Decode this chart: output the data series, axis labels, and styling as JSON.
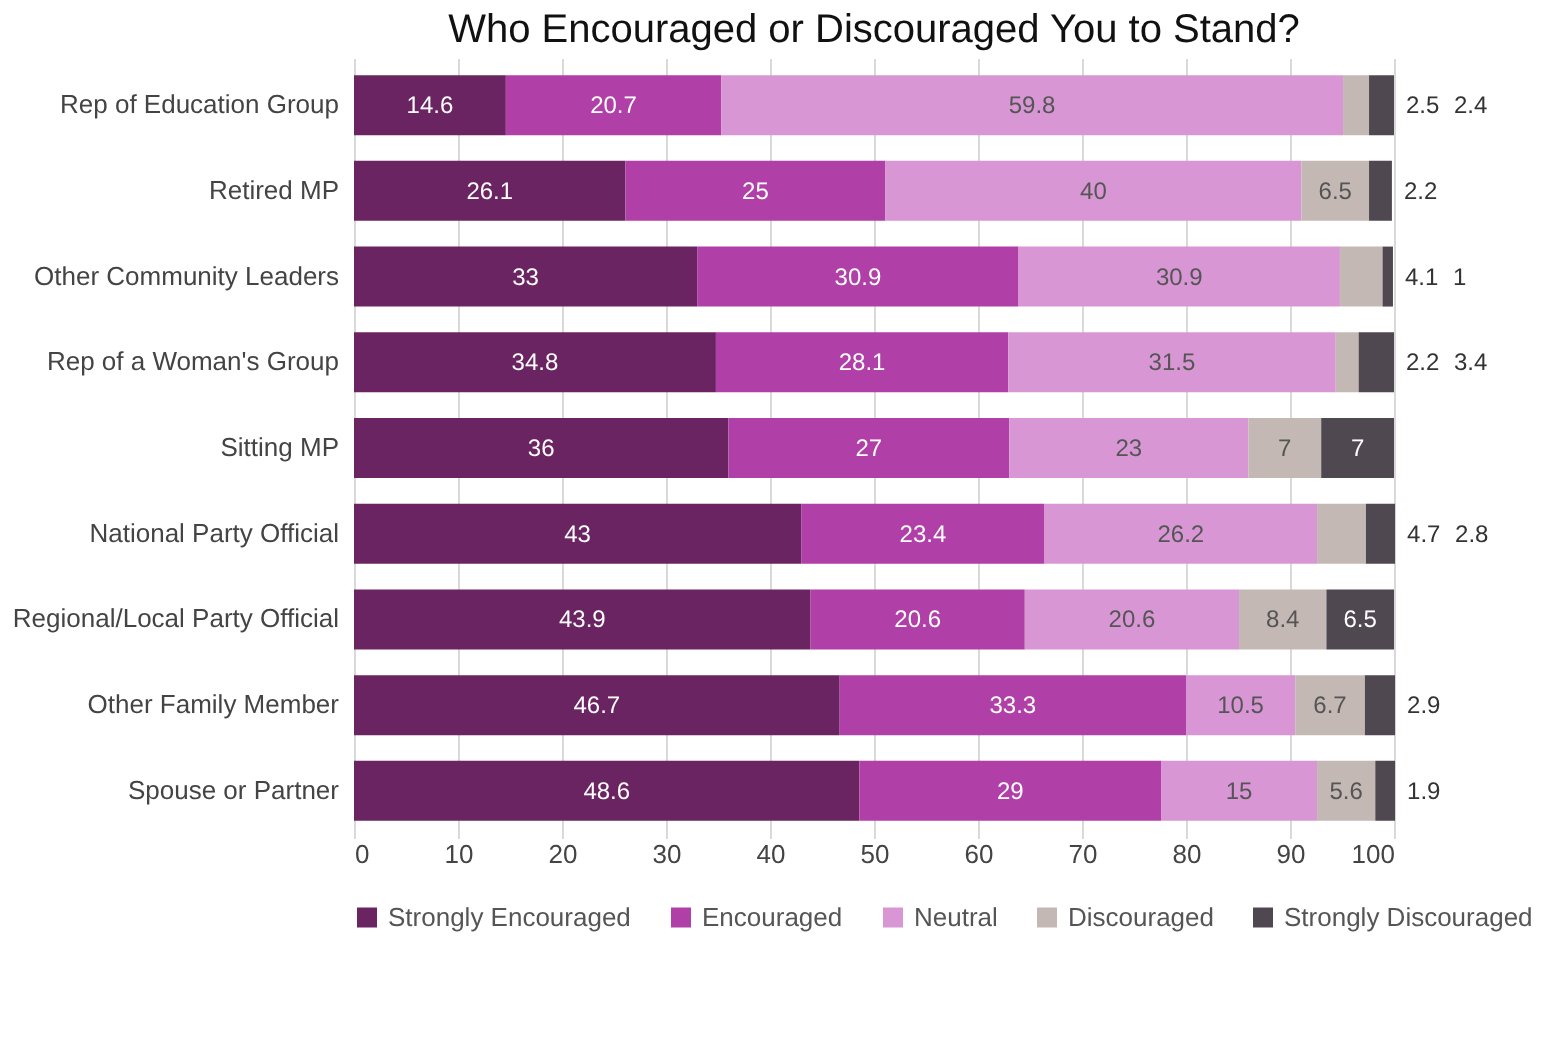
{
  "chart_data": {
    "type": "bar",
    "title": "Who Encouraged or Discouraged You to Stand?",
    "orientation": "horizontal",
    "stacked": true,
    "categories": [
      "Rep of Education Group",
      "Retired MP",
      "Other Community Leaders",
      "Rep of a Woman's Group",
      "Sitting MP",
      "National Party Official",
      "Regional/Local Party Official",
      "Other Family Member",
      "Spouse or Partner"
    ],
    "series": [
      {
        "name": "Strongly Encouraged",
        "color": "#6b2462",
        "values": [
          14.6,
          26.1,
          33,
          34.8,
          36,
          43,
          43.9,
          46.7,
          48.6
        ]
      },
      {
        "name": "Encouraged",
        "color": "#b040a8",
        "values": [
          20.7,
          25,
          30.9,
          28.1,
          27,
          23.4,
          20.6,
          33.3,
          29
        ]
      },
      {
        "name": "Neutral",
        "color": "#d897d4",
        "values": [
          59.8,
          40,
          30.9,
          31.5,
          23,
          26.2,
          20.6,
          10.5,
          15
        ]
      },
      {
        "name": "Discouraged",
        "color": "#c4b8b4",
        "values": [
          2.5,
          6.5,
          4.1,
          2.2,
          7,
          4.7,
          8.4,
          6.7,
          5.6
        ]
      },
      {
        "name": "Strongly Discouraged",
        "color": "#504850",
        "values": [
          2.4,
          2.2,
          1,
          3.4,
          7,
          2.8,
          6.5,
          2.9,
          1.9
        ]
      }
    ],
    "xlim": [
      0,
      100
    ],
    "xticks": [
      0,
      10,
      20,
      30,
      40,
      50,
      60,
      70,
      80,
      90,
      100
    ],
    "grid": "x",
    "legend": "bottom",
    "data_labels": true
  }
}
